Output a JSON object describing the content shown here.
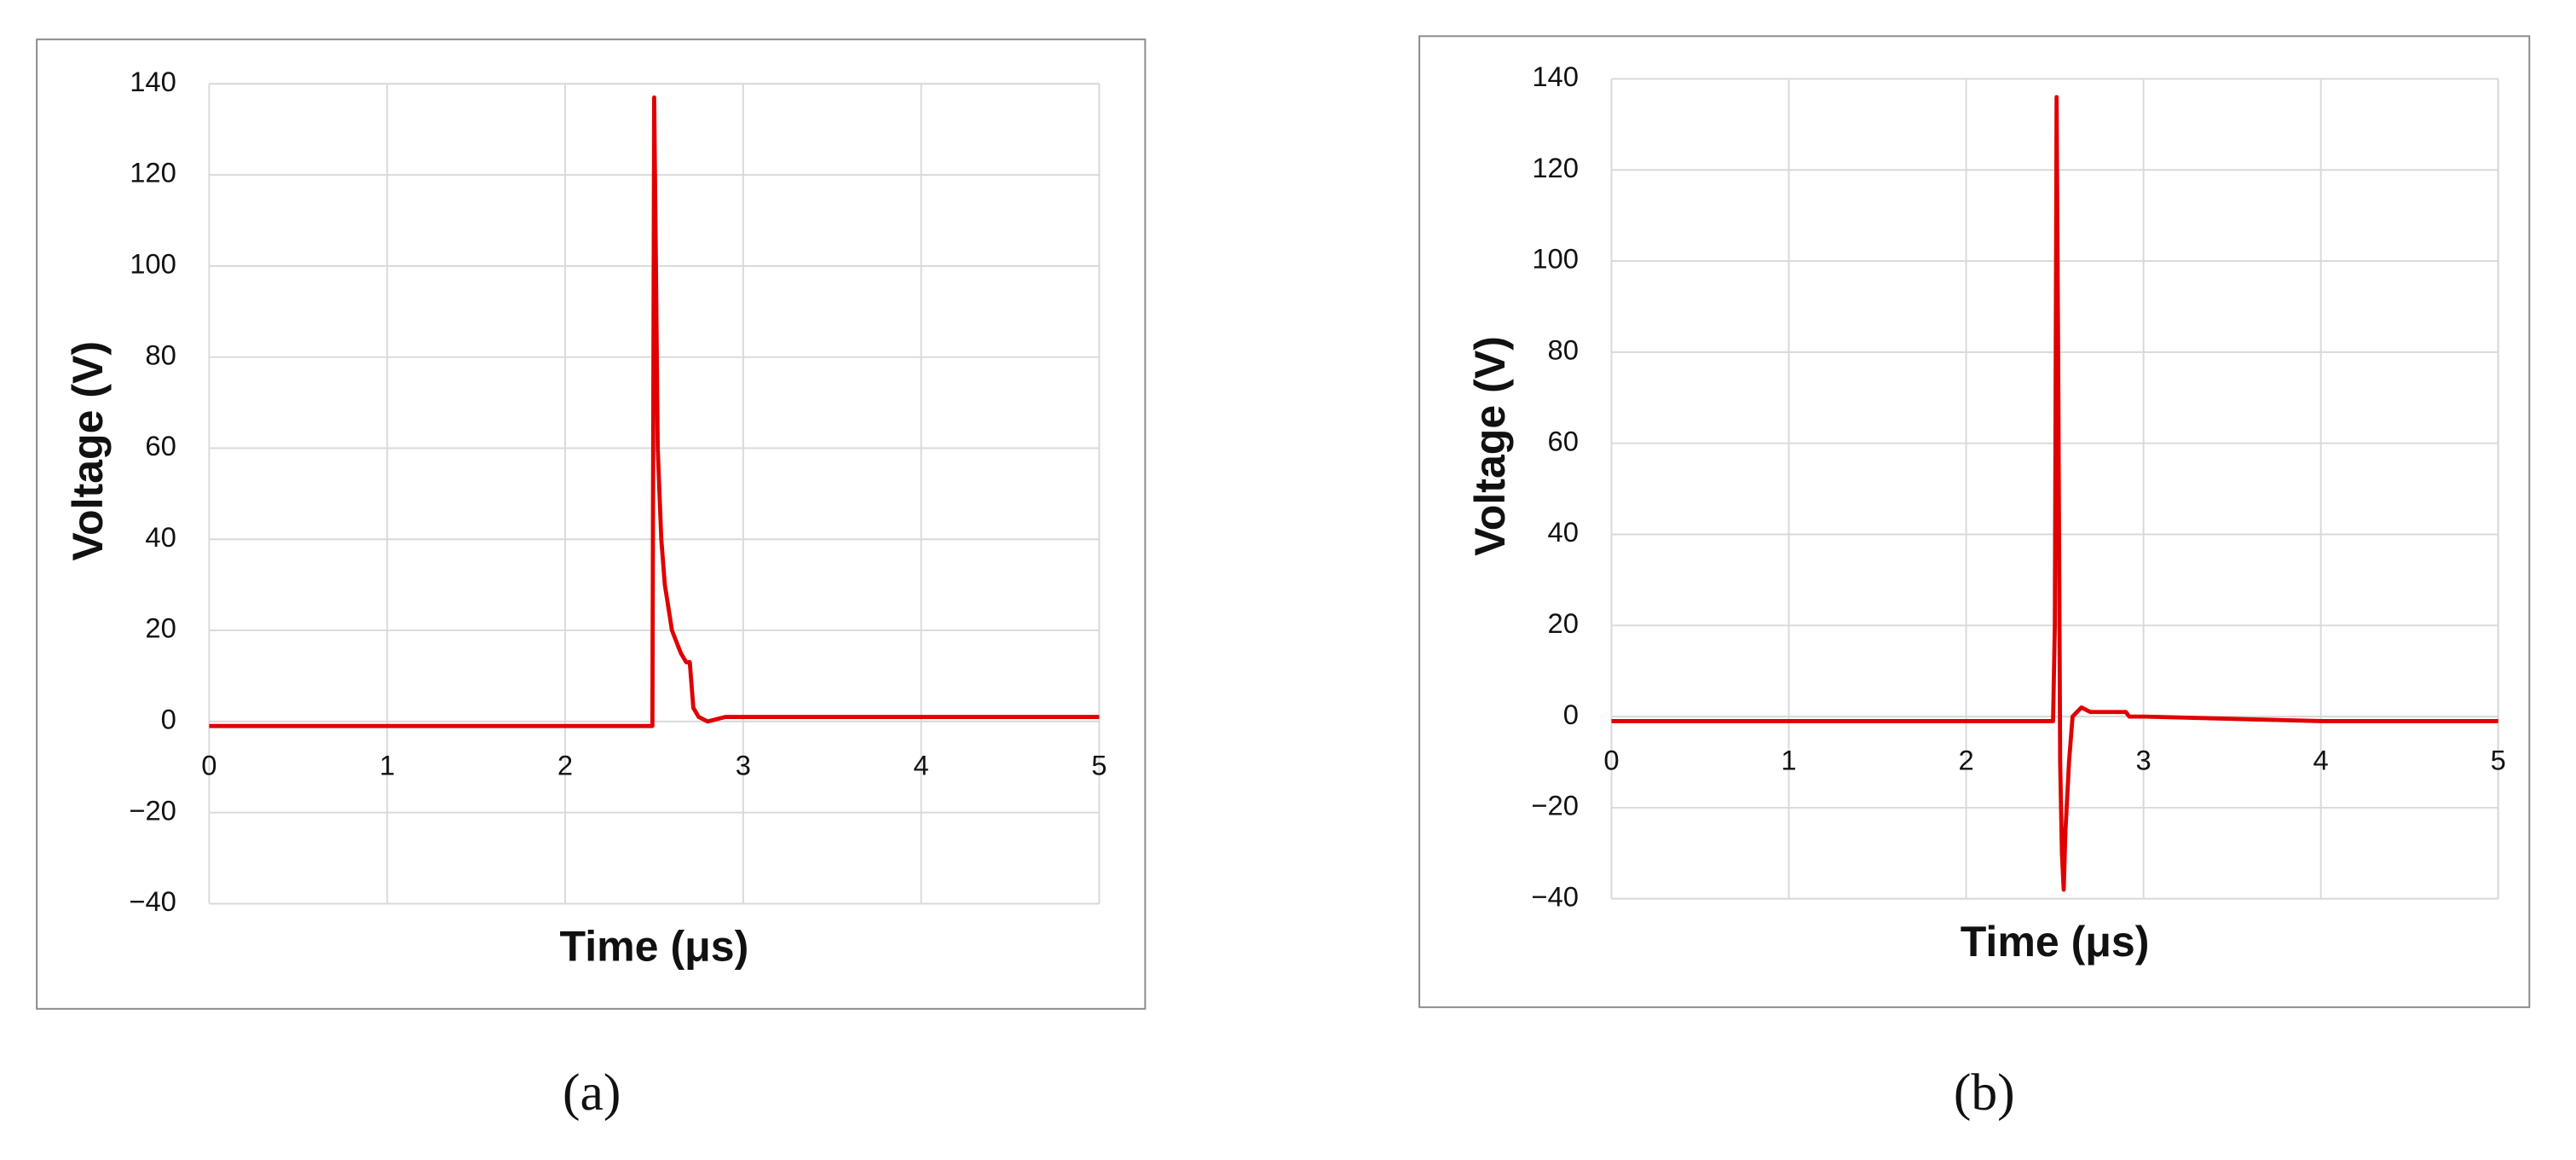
{
  "chart_data": [
    {
      "type": "line",
      "panel_label": "(a)",
      "x_label": "Time (μs)",
      "y_label": "Voltage (V)",
      "xlim": [
        0,
        5
      ],
      "xticks": [
        0,
        1,
        2,
        3,
        4,
        5
      ],
      "ylim": [
        -40,
        140
      ],
      "yticks": [
        {
          "value": -40,
          "label": "−40"
        },
        {
          "value": -20,
          "label": "−20"
        },
        0,
        20,
        40,
        60,
        80,
        100,
        120,
        140
      ],
      "grid": true,
      "x": [
        0,
        0.5,
        1,
        1.5,
        2,
        2.49,
        2.5,
        2.51,
        2.52,
        2.53,
        2.54,
        2.56,
        2.6,
        2.65,
        2.68,
        2.7,
        2.72,
        2.75,
        2.8,
        2.9,
        3,
        4,
        5
      ],
      "series": [
        {
          "color": "#e00000",
          "values": [
            -1,
            -1,
            -1,
            -1,
            -1,
            -1,
            137,
            100,
            60,
            50,
            40,
            30,
            20,
            15,
            13,
            13,
            3,
            1,
            0,
            1,
            1,
            1,
            1
          ]
        }
      ]
    },
    {
      "type": "line",
      "panel_label": "(b)",
      "x_label": "Time (μs)",
      "y_label": "Voltage (V)",
      "xlim": [
        0,
        5
      ],
      "xticks": [
        0,
        1,
        2,
        3,
        4,
        5
      ],
      "ylim": [
        -40,
        140
      ],
      "yticks": [
        {
          "value": -40,
          "label": "−40"
        },
        {
          "value": -20,
          "label": "−20"
        },
        0,
        20,
        40,
        60,
        80,
        100,
        120,
        140
      ],
      "grid": true,
      "x": [
        0,
        1,
        2,
        2.49,
        2.5,
        2.51,
        2.52,
        2.53,
        2.54,
        2.55,
        2.56,
        2.58,
        2.6,
        2.65,
        2.7,
        2.75,
        2.9,
        2.92,
        3,
        4,
        5
      ],
      "series": [
        {
          "color": "#e00000",
          "values": [
            -1,
            -1,
            -1,
            -1,
            20,
            136,
            70,
            -10,
            -30,
            -38,
            -25,
            -10,
            0,
            2,
            1,
            1,
            1,
            0,
            0,
            -1,
            -1
          ]
        }
      ]
    }
  ]
}
